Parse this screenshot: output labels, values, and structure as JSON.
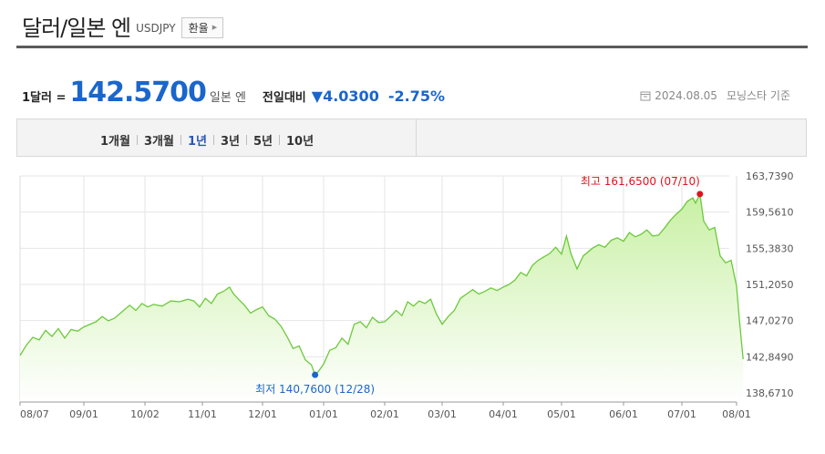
{
  "header": {
    "title": "달러/일본 엔",
    "code": "USDJPY",
    "exchange_button": "환율"
  },
  "quote": {
    "unit_label": "1달러 =",
    "price": "142.5700",
    "currency": "일본 엔",
    "compare_label": "전일대비",
    "change_arrow": "▼",
    "change": "4.0300",
    "change_rate": "-2.75%",
    "date": "2024.08.05",
    "source": "모닝스타 기준",
    "down_color": "#1a66cc",
    "date_icon": "calendar-icon"
  },
  "tabs": [
    {
      "label": "1개월",
      "active": false
    },
    {
      "label": "3개월",
      "active": false
    },
    {
      "label": "1년",
      "active": true
    },
    {
      "label": "3년",
      "active": false
    },
    {
      "label": "5년",
      "active": false
    },
    {
      "label": "10년",
      "active": false
    }
  ],
  "chart_data": {
    "type": "area",
    "line_color": "#6cc93c",
    "fill_color": "#c8f0a4",
    "ylim": [
      138.671,
      163.739
    ],
    "y_ticks": [
      "163,7390",
      "159,5610",
      "155,3830",
      "151,2050",
      "147,0270",
      "142,8490",
      "138,6710"
    ],
    "x_ticks": [
      "08/07",
      "09/01",
      "10/02",
      "11/01",
      "12/01",
      "01/01",
      "02/01",
      "03/01",
      "04/01",
      "05/01",
      "06/01",
      "07/01",
      "08/01"
    ],
    "max_label": "최고 161,6500 (07/10)",
    "min_label": "최저 140,7600 (12/28)",
    "max_point": {
      "x": 11.33,
      "y": 161.65
    },
    "min_point": {
      "x": 4.86,
      "y": 140.76
    },
    "series": [
      {
        "values": [
          [
            0.0,
            143.0
          ],
          [
            0.1,
            144.2
          ],
          [
            0.2,
            145.1
          ],
          [
            0.3,
            144.8
          ],
          [
            0.4,
            145.9
          ],
          [
            0.5,
            145.2
          ],
          [
            0.6,
            146.1
          ],
          [
            0.7,
            145.0
          ],
          [
            0.8,
            146.0
          ],
          [
            0.9,
            145.8
          ],
          [
            1.0,
            146.3
          ],
          [
            1.2,
            146.9
          ],
          [
            1.3,
            147.5
          ],
          [
            1.4,
            147.0
          ],
          [
            1.5,
            147.3
          ],
          [
            1.6,
            147.9
          ],
          [
            1.75,
            148.8
          ],
          [
            1.85,
            148.2
          ],
          [
            1.95,
            149.0
          ],
          [
            2.05,
            148.6
          ],
          [
            2.15,
            148.9
          ],
          [
            2.3,
            148.7
          ],
          [
            2.45,
            149.3
          ],
          [
            2.6,
            149.2
          ],
          [
            2.75,
            149.5
          ],
          [
            2.85,
            149.3
          ],
          [
            2.95,
            148.6
          ],
          [
            3.05,
            149.6
          ],
          [
            3.15,
            149.0
          ],
          [
            3.25,
            150.1
          ],
          [
            3.35,
            150.4
          ],
          [
            3.45,
            150.9
          ],
          [
            3.52,
            150.1
          ],
          [
            3.6,
            149.5
          ],
          [
            3.7,
            148.8
          ],
          [
            3.8,
            147.9
          ],
          [
            3.9,
            148.3
          ],
          [
            4.0,
            148.6
          ],
          [
            4.1,
            147.6
          ],
          [
            4.2,
            147.2
          ],
          [
            4.3,
            146.4
          ],
          [
            4.4,
            145.2
          ],
          [
            4.5,
            143.8
          ],
          [
            4.6,
            144.1
          ],
          [
            4.7,
            142.5
          ],
          [
            4.8,
            141.9
          ],
          [
            4.86,
            140.76
          ],
          [
            4.92,
            141.2
          ],
          [
            5.0,
            142.0
          ],
          [
            5.1,
            143.6
          ],
          [
            5.2,
            143.9
          ],
          [
            5.3,
            145.0
          ],
          [
            5.4,
            144.3
          ],
          [
            5.5,
            146.6
          ],
          [
            5.6,
            146.9
          ],
          [
            5.7,
            146.2
          ],
          [
            5.8,
            147.4
          ],
          [
            5.9,
            146.8
          ],
          [
            6.0,
            146.9
          ],
          [
            6.1,
            147.5
          ],
          [
            6.2,
            148.2
          ],
          [
            6.3,
            147.6
          ],
          [
            6.4,
            149.2
          ],
          [
            6.5,
            148.7
          ],
          [
            6.6,
            149.3
          ],
          [
            6.7,
            149.0
          ],
          [
            6.8,
            149.5
          ],
          [
            6.9,
            147.8
          ],
          [
            7.0,
            146.6
          ],
          [
            7.1,
            147.5
          ],
          [
            7.2,
            148.2
          ],
          [
            7.3,
            149.6
          ],
          [
            7.4,
            150.1
          ],
          [
            7.5,
            150.6
          ],
          [
            7.6,
            150.1
          ],
          [
            7.7,
            150.4
          ],
          [
            7.8,
            150.8
          ],
          [
            7.9,
            150.5
          ],
          [
            8.0,
            150.9
          ],
          [
            8.1,
            151.2
          ],
          [
            8.2,
            151.7
          ],
          [
            8.3,
            152.6
          ],
          [
            8.4,
            152.2
          ],
          [
            8.5,
            153.4
          ],
          [
            8.6,
            154.0
          ],
          [
            8.7,
            154.4
          ],
          [
            8.8,
            154.8
          ],
          [
            8.9,
            155.5
          ],
          [
            9.0,
            154.7
          ],
          [
            9.08,
            156.8
          ],
          [
            9.15,
            154.8
          ],
          [
            9.25,
            153.0
          ],
          [
            9.35,
            154.5
          ],
          [
            9.5,
            155.4
          ],
          [
            9.6,
            155.8
          ],
          [
            9.7,
            155.5
          ],
          [
            9.8,
            156.3
          ],
          [
            9.9,
            156.6
          ],
          [
            10.0,
            156.2
          ],
          [
            10.1,
            157.2
          ],
          [
            10.2,
            156.7
          ],
          [
            10.3,
            157.0
          ],
          [
            10.4,
            157.5
          ],
          [
            10.5,
            156.8
          ],
          [
            10.6,
            156.9
          ],
          [
            10.7,
            157.7
          ],
          [
            10.8,
            158.6
          ],
          [
            10.9,
            159.3
          ],
          [
            11.0,
            159.9
          ],
          [
            11.1,
            160.8
          ],
          [
            11.2,
            161.2
          ],
          [
            11.25,
            160.6
          ],
          [
            11.33,
            161.65
          ],
          [
            11.4,
            158.5
          ],
          [
            11.5,
            157.5
          ],
          [
            11.6,
            157.8
          ],
          [
            11.7,
            154.5
          ],
          [
            11.8,
            153.7
          ],
          [
            11.9,
            154.0
          ],
          [
            12.0,
            151.0
          ],
          [
            12.05,
            147.2
          ],
          [
            12.12,
            142.57
          ]
        ]
      }
    ]
  }
}
